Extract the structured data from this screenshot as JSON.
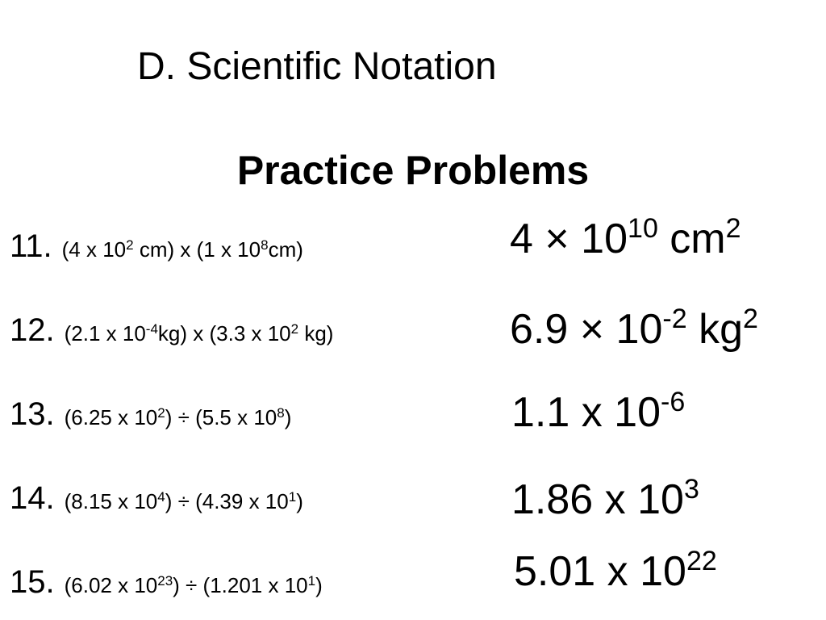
{
  "header": {
    "title": "D. Scientific Notation",
    "subtitle": "Practice Problems"
  },
  "problems": [
    {
      "number": "11.",
      "expression": [
        {
          "base": "(4 x 10",
          "sup": "2"
        },
        {
          "base": " cm) x (1 x 10",
          "sup": "8"
        },
        {
          "base": "cm)"
        }
      ],
      "answer": [
        {
          "base": "4 × 10",
          "sup": "10"
        },
        {
          "base": " cm",
          "sup": "2"
        }
      ]
    },
    {
      "number": "12.",
      "expression": [
        {
          "base": "(2.1 x 10",
          "sup": "-4"
        },
        {
          "base": "kg) x (3.3 x 10",
          "sup": "2"
        },
        {
          "base": " kg)"
        }
      ],
      "answer": [
        {
          "base": "6.9 × 10",
          "sup": "-2"
        },
        {
          "base": " kg",
          "sup": "2"
        }
      ]
    },
    {
      "number": "13.",
      "expression": [
        {
          "base": "(6.25 x 10",
          "sup": "2"
        },
        {
          "base": ") ÷ (5.5 x 10",
          "sup": "8"
        },
        {
          "base": ")"
        }
      ],
      "answer": [
        {
          "base": "1.1 x 10",
          "sup": "-6"
        }
      ]
    },
    {
      "number": "14.",
      "expression": [
        {
          "base": "(8.15 x 10",
          "sup": "4"
        },
        {
          "base": ") ÷ (4.39 x 10",
          "sup": "1"
        },
        {
          "base": ")"
        }
      ],
      "answer": [
        {
          "base": "1.86 x 10",
          "sup": "3"
        }
      ]
    },
    {
      "number": "15.",
      "expression": [
        {
          "base": "(6.02 x 10",
          "sup": "23"
        },
        {
          "base": ") ÷ (1.201 x 10",
          "sup": "1"
        },
        {
          "base": ")"
        }
      ],
      "answer": [
        {
          "base": "5.01 x 10",
          "sup": "22"
        }
      ]
    }
  ]
}
